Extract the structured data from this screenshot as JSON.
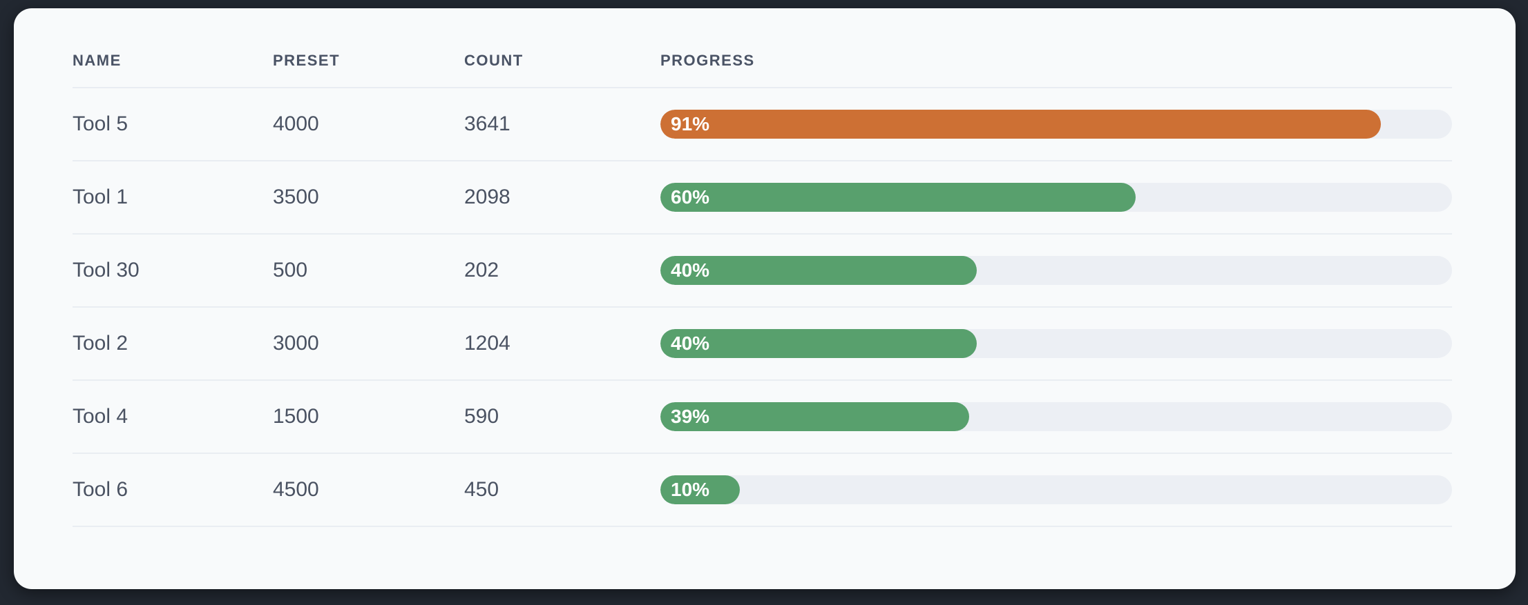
{
  "colors": {
    "page_bg": "#222831",
    "card_bg": "#f8fafb",
    "separator": "#e9edf2",
    "header_text": "#4a5365",
    "row_text": "#4a5262",
    "bar_track": "#eceff4",
    "bar_orange": "#cd7034",
    "bar_green": "#58a06d",
    "bar_label_text": "#ffffff"
  },
  "table": {
    "columns": [
      {
        "key": "name",
        "label": "NAME"
      },
      {
        "key": "preset",
        "label": "PRESET"
      },
      {
        "key": "count",
        "label": "COUNT"
      },
      {
        "key": "progress",
        "label": "PROGRESS"
      }
    ],
    "rows": [
      {
        "name": "Tool 5",
        "preset": "4000",
        "count": "3641",
        "progress_pct": 91,
        "progress_label": "91%",
        "bar_color": "#cd7034"
      },
      {
        "name": "Tool 1",
        "preset": "3500",
        "count": "2098",
        "progress_pct": 60,
        "progress_label": "60%",
        "bar_color": "#58a06d"
      },
      {
        "name": "Tool 30",
        "preset": "500",
        "count": "202",
        "progress_pct": 40,
        "progress_label": "40%",
        "bar_color": "#58a06d"
      },
      {
        "name": "Tool 2",
        "preset": "3000",
        "count": "1204",
        "progress_pct": 40,
        "progress_label": "40%",
        "bar_color": "#58a06d"
      },
      {
        "name": "Tool 4",
        "preset": "1500",
        "count": "590",
        "progress_pct": 39,
        "progress_label": "39%",
        "bar_color": "#58a06d"
      },
      {
        "name": "Tool 6",
        "preset": "4500",
        "count": "450",
        "progress_pct": 10,
        "progress_label": "10%",
        "bar_color": "#58a06d"
      }
    ]
  }
}
